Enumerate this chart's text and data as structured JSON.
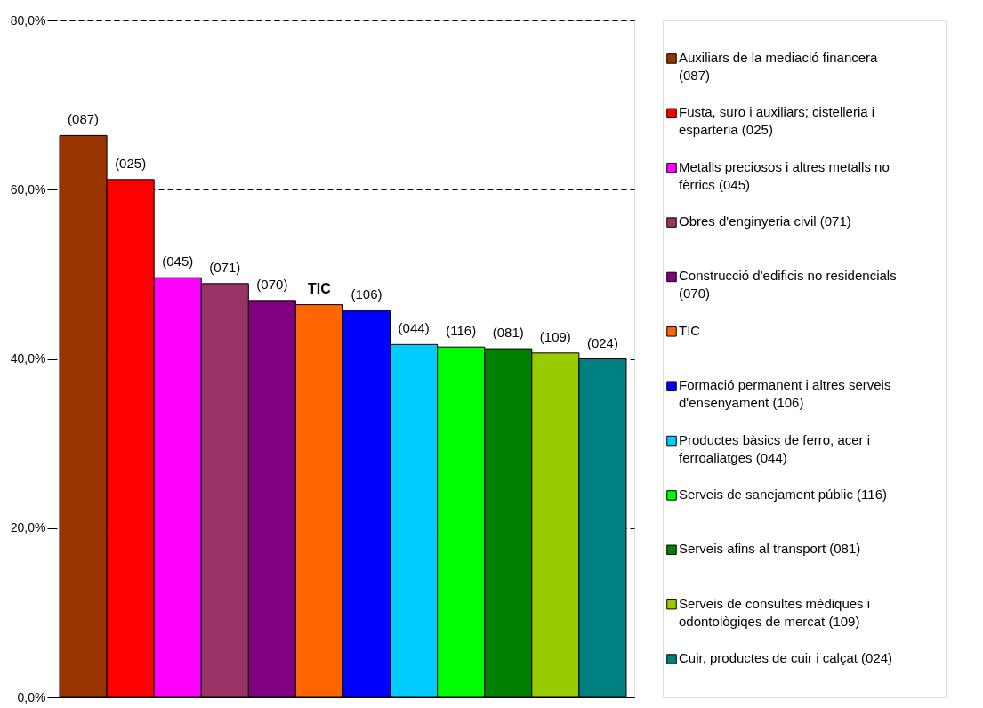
{
  "chart_data": {
    "type": "bar",
    "categories": [
      null
    ],
    "series": [
      {
        "name": "Auxiliars de la mediació financera (087)",
        "color": "#993300",
        "values": [
          66.4
        ]
      },
      {
        "name": "Fusta, suro i auxiliars; cistelleria i esparteria (025)",
        "color": "#ff0000",
        "values": [
          61.2
        ]
      },
      {
        "name": "Metalls preciosos i altres metalls no fèrrics (045)",
        "color": "#ff00ff",
        "values": [
          49.6
        ]
      },
      {
        "name": "Obres d'enginyeria civil (071)",
        "color": "#993366",
        "values": [
          48.9
        ]
      },
      {
        "name": "Construcció d'edificis no residencials (070)",
        "color": "#800080",
        "values": [
          46.9
        ]
      },
      {
        "name": "TIC",
        "color": "#ff6600",
        "values": [
          46.4
        ]
      },
      {
        "name": "Formació permanent i altres serveis d'ensenyament (106)",
        "color": "#0000ff",
        "values": [
          45.7
        ]
      },
      {
        "name": "Productes bàsics de ferro, acer i ferroaliatges (044)",
        "color": "#00ccff",
        "values": [
          41.7
        ]
      },
      {
        "name": "Serveis de sanejament públic  (116)",
        "color": "#00ff00",
        "values": [
          41.4
        ]
      },
      {
        "name": "Serveis afins al transport (081)",
        "color": "#008000",
        "values": [
          41.2
        ]
      },
      {
        "name": "Serveis de consultes mèdiques i odontològiqes de mercat (109)",
        "color": "#99cc00",
        "values": [
          40.7
        ]
      },
      {
        "name": "Cuir, productes de cuir i calçat (024)",
        "color": "#008080",
        "values": [
          40.0
        ]
      }
    ],
    "annotations": [
      {
        "text": "(087)",
        "y": 66.4
      },
      {
        "text": "(025)",
        "y": 61.2
      },
      {
        "text": "(045)",
        "y": 49.6
      },
      {
        "text": "(071)",
        "y": 48.9
      },
      {
        "text": "(070)",
        "y": 46.9
      },
      {
        "text": "TIC",
        "y": 46.4
      },
      {
        "text": "(106)",
        "y": 45.7
      },
      {
        "text": "(044)",
        "y": 41.7
      },
      {
        "text": "(116)",
        "y": 41.4
      },
      {
        "text": "(081)",
        "y": 41.2
      },
      {
        "text": "(109)",
        "y": 40.7
      },
      {
        "text": "(024)",
        "y": 40.0
      }
    ],
    "ylim": [
      0,
      80
    ],
    "yticks": [
      {
        "value": 0,
        "label": "0,0%"
      },
      {
        "value": 20,
        "label": "20,0%"
      },
      {
        "value": 40,
        "label": "40,0%"
      },
      {
        "value": 60,
        "label": "60,0%"
      },
      {
        "value": 80,
        "label": "80,0%"
      }
    ],
    "grid": "y",
    "legend": "right",
    "tick_labels": "y"
  }
}
